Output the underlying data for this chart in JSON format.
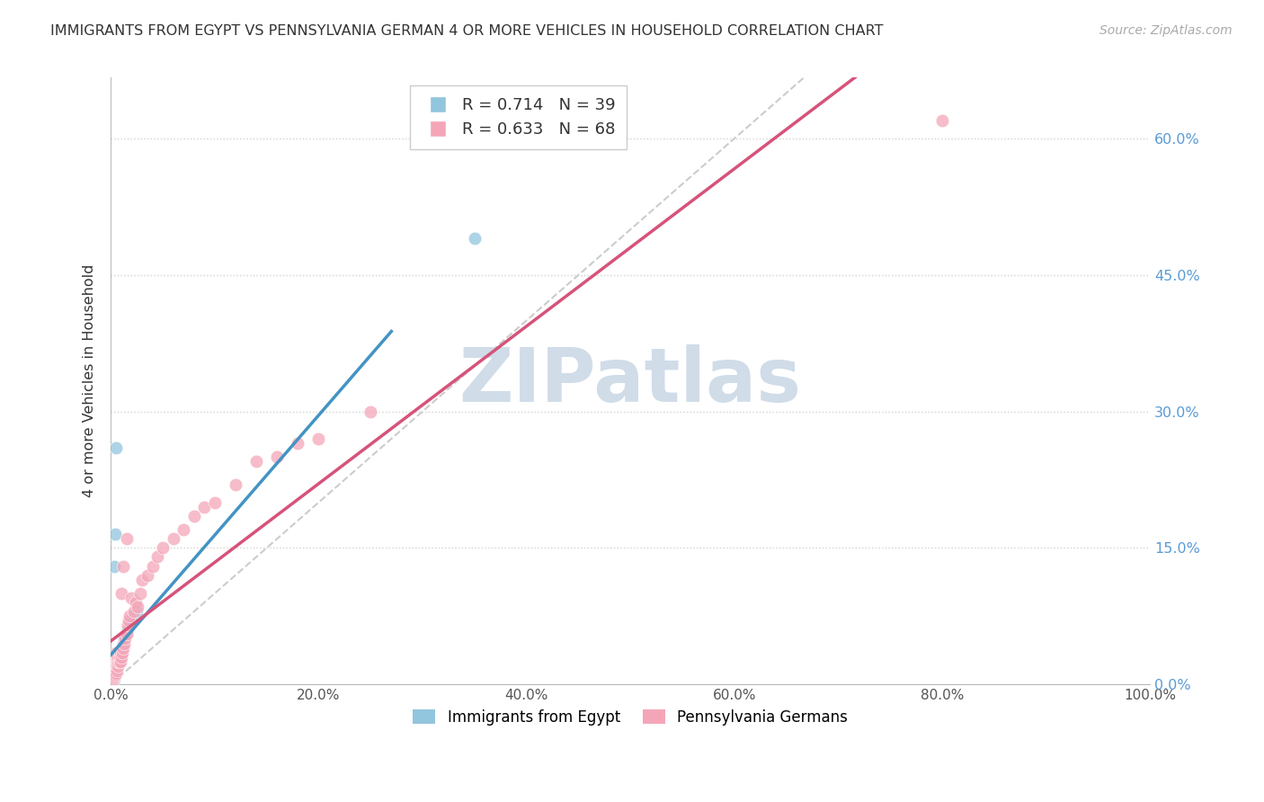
{
  "title": "IMMIGRANTS FROM EGYPT VS PENNSYLVANIA GERMAN 4 OR MORE VEHICLES IN HOUSEHOLD CORRELATION CHART",
  "source": "Source: ZipAtlas.com",
  "xlim": [
    0.0,
    1.0
  ],
  "ylim": [
    0.0,
    0.667
  ],
  "xticks": [
    0.0,
    0.2,
    0.4,
    0.6,
    0.8,
    1.0
  ],
  "xticklabels": [
    "0.0%",
    "20.0%",
    "40.0%",
    "60.0%",
    "80.0%",
    "100.0%"
  ],
  "yticks": [
    0.0,
    0.15,
    0.3,
    0.45,
    0.6
  ],
  "yticklabels_right": [
    "0.0%",
    "15.0%",
    "30.0%",
    "45.0%",
    "60.0%"
  ],
  "legend_label1": "Immigrants from Egypt",
  "legend_label2": "Pennsylvania Germans",
  "ylabel": "4 or more Vehicles in Household",
  "R1": 0.714,
  "N1": 39,
  "R2": 0.633,
  "N2": 68,
  "color1": "#92c5de",
  "color2": "#f4a6b8",
  "trendline1_color": "#4393c3",
  "trendline2_color": "#d6537a",
  "diagonal_color": "#cccccc",
  "background_color": "#ffffff",
  "grid_color": "#dddddd",
  "title_color": "#333333",
  "right_axis_color": "#5b9bd5",
  "watermark_color": "#d0dce8",
  "egypt_scatter": [
    [
      0.001,
      0.005
    ],
    [
      0.001,
      0.01
    ],
    [
      0.001,
      0.02
    ],
    [
      0.001,
      0.025
    ],
    [
      0.002,
      0.005
    ],
    [
      0.002,
      0.01
    ],
    [
      0.002,
      0.015
    ],
    [
      0.002,
      0.02
    ],
    [
      0.002,
      0.025
    ],
    [
      0.002,
      0.03
    ],
    [
      0.003,
      0.005
    ],
    [
      0.003,
      0.01
    ],
    [
      0.003,
      0.015
    ],
    [
      0.003,
      0.02
    ],
    [
      0.004,
      0.01
    ],
    [
      0.004,
      0.015
    ],
    [
      0.004,
      0.02
    ],
    [
      0.005,
      0.015
    ],
    [
      0.005,
      0.02
    ],
    [
      0.005,
      0.025
    ],
    [
      0.006,
      0.02
    ],
    [
      0.006,
      0.025
    ],
    [
      0.007,
      0.025
    ],
    [
      0.008,
      0.03
    ],
    [
      0.009,
      0.03
    ],
    [
      0.01,
      0.035
    ],
    [
      0.011,
      0.04
    ],
    [
      0.012,
      0.045
    ],
    [
      0.013,
      0.05
    ],
    [
      0.015,
      0.055
    ],
    [
      0.016,
      0.06
    ],
    [
      0.018,
      0.065
    ],
    [
      0.02,
      0.07
    ],
    [
      0.022,
      0.075
    ],
    [
      0.025,
      0.08
    ],
    [
      0.004,
      0.165
    ],
    [
      0.003,
      0.13
    ],
    [
      0.35,
      0.49
    ],
    [
      0.005,
      0.26
    ]
  ],
  "pagerman_scatter": [
    [
      0.001,
      0.005
    ],
    [
      0.001,
      0.01
    ],
    [
      0.001,
      0.015
    ],
    [
      0.001,
      0.02
    ],
    [
      0.002,
      0.005
    ],
    [
      0.002,
      0.01
    ],
    [
      0.002,
      0.015
    ],
    [
      0.002,
      0.02
    ],
    [
      0.002,
      0.025
    ],
    [
      0.002,
      0.03
    ],
    [
      0.003,
      0.008
    ],
    [
      0.003,
      0.012
    ],
    [
      0.003,
      0.018
    ],
    [
      0.003,
      0.022
    ],
    [
      0.003,
      0.028
    ],
    [
      0.004,
      0.01
    ],
    [
      0.004,
      0.015
    ],
    [
      0.004,
      0.02
    ],
    [
      0.004,
      0.025
    ],
    [
      0.005,
      0.012
    ],
    [
      0.005,
      0.018
    ],
    [
      0.005,
      0.022
    ],
    [
      0.005,
      0.028
    ],
    [
      0.005,
      0.035
    ],
    [
      0.006,
      0.015
    ],
    [
      0.006,
      0.022
    ],
    [
      0.006,
      0.028
    ],
    [
      0.007,
      0.02
    ],
    [
      0.007,
      0.025
    ],
    [
      0.007,
      0.03
    ],
    [
      0.008,
      0.025
    ],
    [
      0.008,
      0.03
    ],
    [
      0.009,
      0.025
    ],
    [
      0.009,
      0.035
    ],
    [
      0.01,
      0.03
    ],
    [
      0.01,
      0.1
    ],
    [
      0.011,
      0.035
    ],
    [
      0.012,
      0.04
    ],
    [
      0.012,
      0.13
    ],
    [
      0.013,
      0.045
    ],
    [
      0.014,
      0.05
    ],
    [
      0.015,
      0.055
    ],
    [
      0.015,
      0.16
    ],
    [
      0.016,
      0.065
    ],
    [
      0.017,
      0.07
    ],
    [
      0.018,
      0.075
    ],
    [
      0.02,
      0.095
    ],
    [
      0.022,
      0.08
    ],
    [
      0.024,
      0.09
    ],
    [
      0.026,
      0.085
    ],
    [
      0.028,
      0.1
    ],
    [
      0.03,
      0.115
    ],
    [
      0.035,
      0.12
    ],
    [
      0.04,
      0.13
    ],
    [
      0.045,
      0.14
    ],
    [
      0.05,
      0.15
    ],
    [
      0.06,
      0.16
    ],
    [
      0.07,
      0.17
    ],
    [
      0.08,
      0.185
    ],
    [
      0.09,
      0.195
    ],
    [
      0.1,
      0.2
    ],
    [
      0.12,
      0.22
    ],
    [
      0.14,
      0.245
    ],
    [
      0.16,
      0.25
    ],
    [
      0.18,
      0.265
    ],
    [
      0.2,
      0.27
    ],
    [
      0.25,
      0.3
    ],
    [
      0.8,
      0.62
    ]
  ],
  "trendline1_xrange": [
    0.0,
    0.27
  ],
  "trendline2_xrange": [
    0.0,
    1.0
  ],
  "diag_xrange": [
    0.0,
    0.7
  ]
}
